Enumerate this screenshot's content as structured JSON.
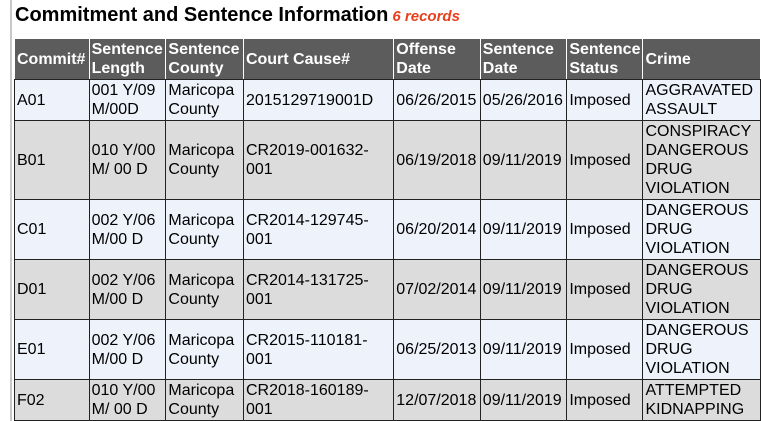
{
  "title": "Commitment and Sentence Information",
  "record_count": "6 records",
  "headers": [
    "Commit#",
    "Sentence Length",
    "Sentence County",
    "Court Cause#",
    "Offense Date",
    "Sentence Date",
    "Sentence Status",
    "Crime"
  ],
  "rows": [
    [
      "A01",
      "001 Y/09 M/00D",
      "Maricopa County",
      "2015129719001D",
      "06/26/2015",
      "05/26/2016",
      "Imposed",
      "AGGRAVATED ASSAULT"
    ],
    [
      "B01",
      "010 Y/00 M/ 00 D",
      "Maricopa County",
      "CR2019-001632-001",
      "06/19/2018",
      "09/11/2019",
      "Imposed",
      "CONSPIRACY DANGEROUS DRUG VIOLATION"
    ],
    [
      "C01",
      "002 Y/06 M/00 D",
      "Maricopa County",
      "CR2014-129745-001",
      "06/20/2014",
      "09/11/2019",
      "Imposed",
      "DANGEROUS DRUG VIOLATION"
    ],
    [
      "D01",
      "002 Y/06 M/00 D",
      "Maricopa County",
      "CR2014-131725-001",
      "07/02/2014",
      "09/11/2019",
      "Imposed",
      "DANGEROUS DRUG VIOLATION"
    ],
    [
      "E01",
      "002 Y/06 M/00 D",
      "Maricopa County",
      "CR2015-110181-001",
      "06/25/2013",
      "09/11/2019",
      "Imposed",
      "DANGEROUS DRUG VIOLATION"
    ],
    [
      "F02",
      "010 Y/00 M/ 00 D",
      "Maricopa County",
      "CR2018-160189-001",
      "12/07/2018",
      "09/11/2019",
      "Imposed",
      "ATTEMPTED KIDNAPPING"
    ]
  ]
}
